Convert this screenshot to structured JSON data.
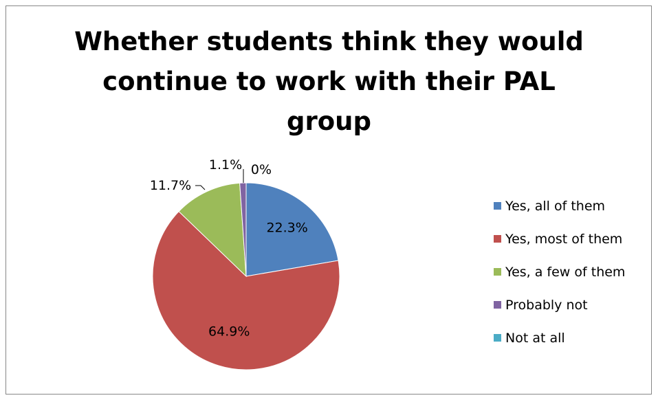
{
  "chart_data": {
    "type": "pie",
    "title": "Whether students think they would continue to work with their PAL group",
    "title_lines": [
      "Whether students think they would",
      "continue to work with their PAL",
      "group"
    ],
    "categories": [
      "Yes, all of them",
      "Yes, most of them",
      "Yes, a few of them",
      "Probably not",
      "Not at all"
    ],
    "values": [
      22.3,
      64.9,
      11.7,
      1.1,
      0
    ],
    "data_labels": [
      "22.3%",
      "64.9%",
      "11.7%",
      "1.1%",
      "0%"
    ],
    "colors": [
      "#4f81bd",
      "#c0504d",
      "#9bbb59",
      "#8064a2",
      "#4bacc6"
    ],
    "legend_position": "right"
  }
}
